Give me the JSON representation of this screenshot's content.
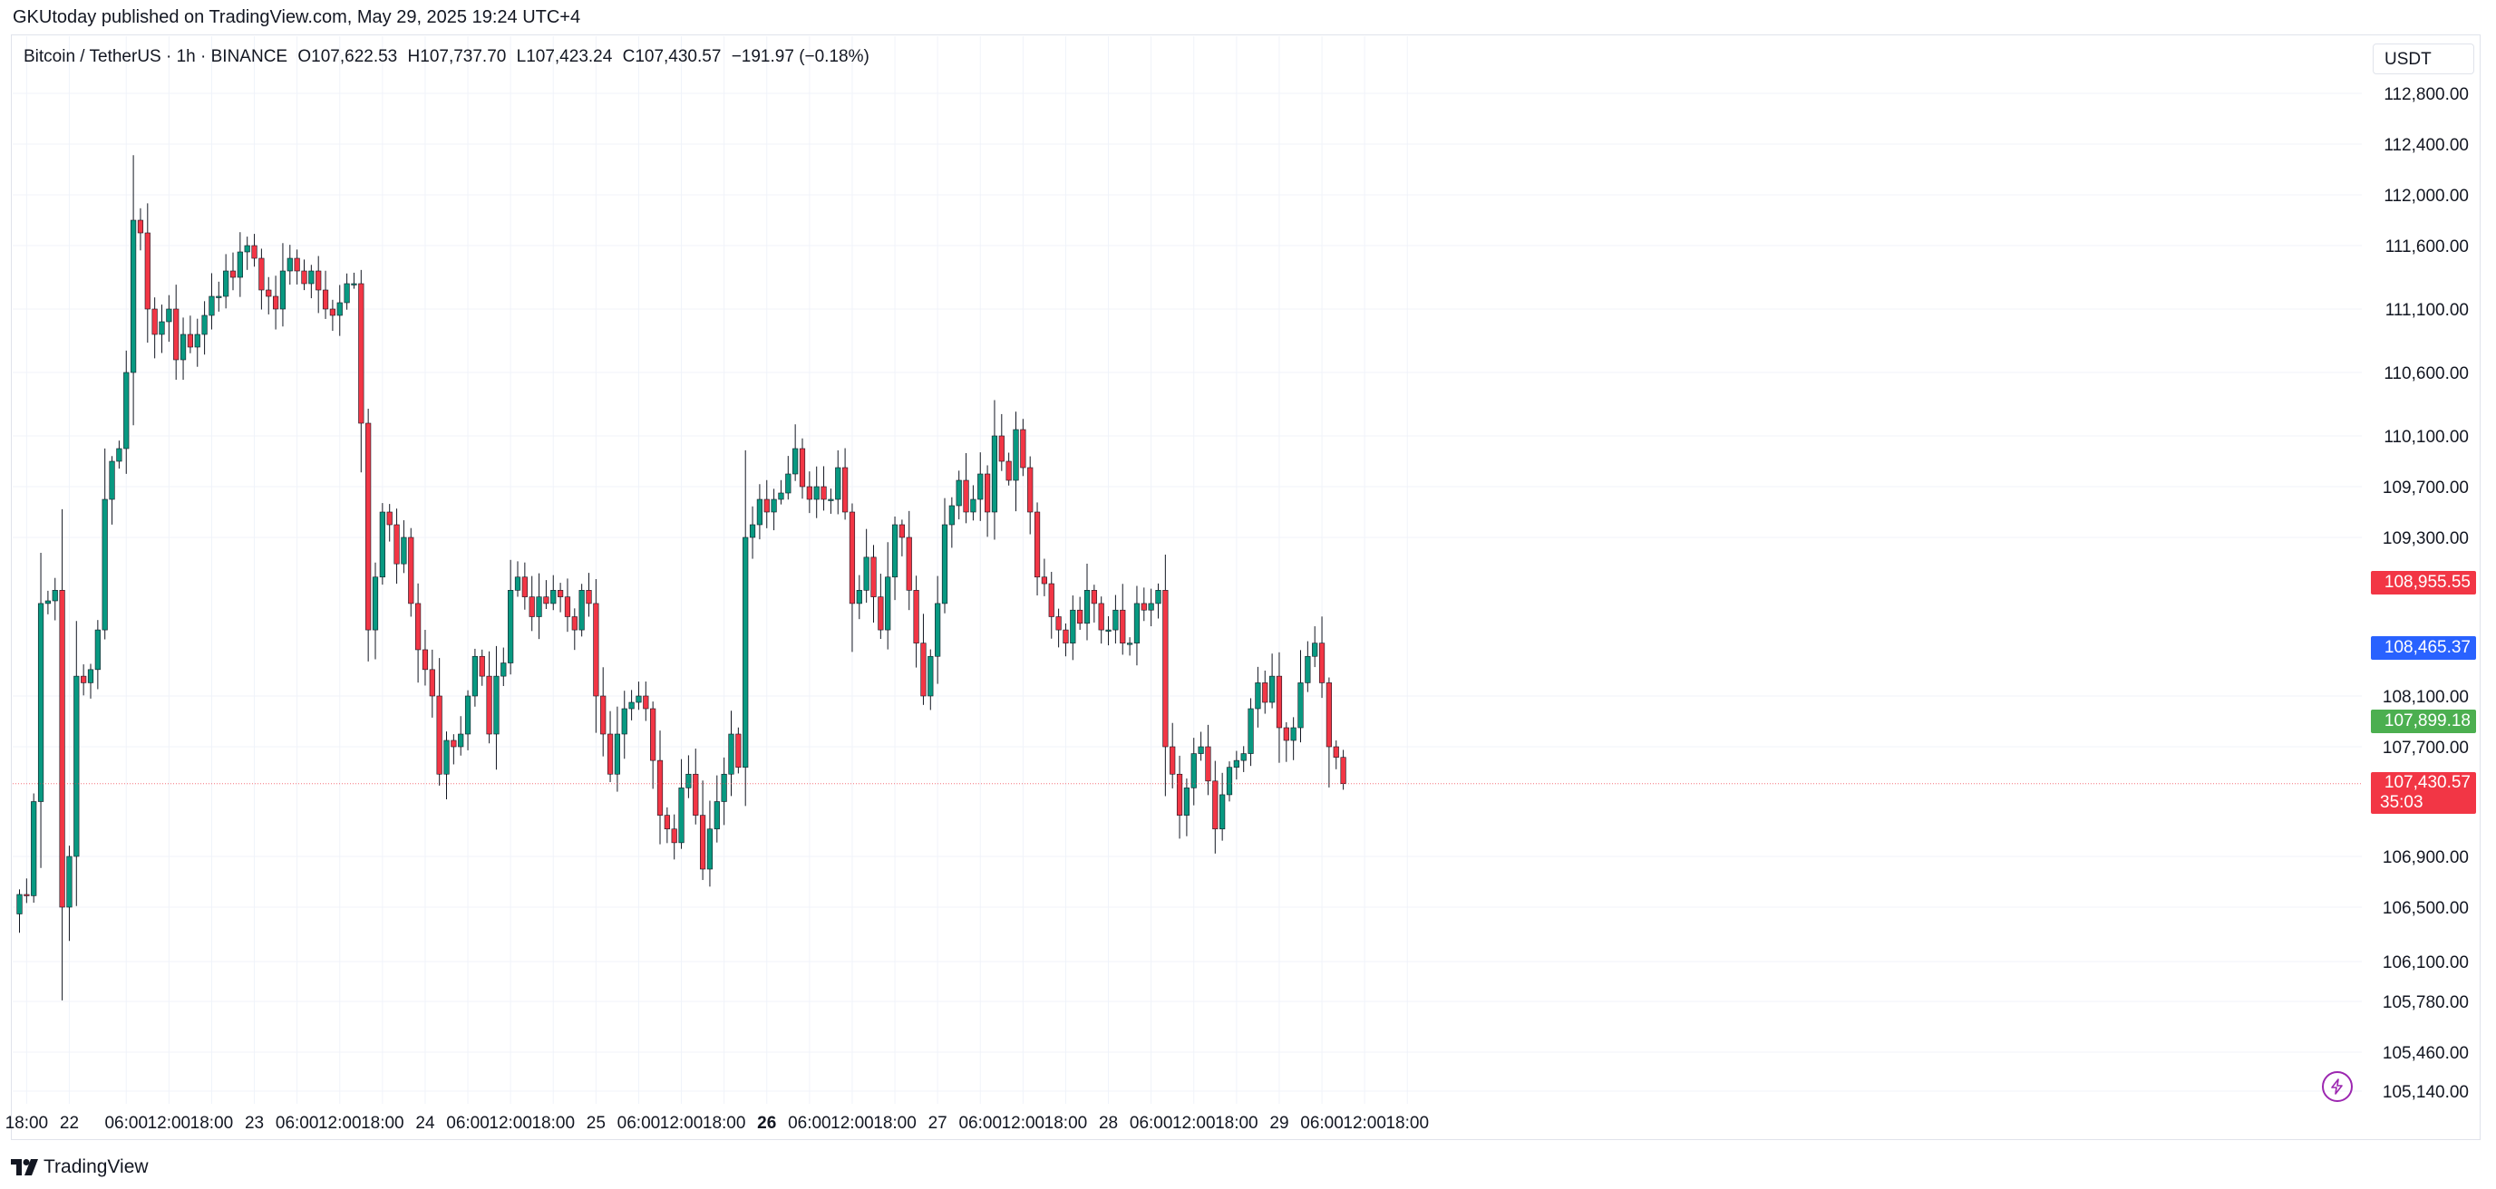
{
  "header": {
    "publisher_line": "GKUtoday published on TradingView.com, May 29, 2025 19:24 UTC+4"
  },
  "legend": {
    "symbol": "Bitcoin / TetherUS · 1h · BINANCE",
    "open": "O107,622.53",
    "high": "H107,737.70",
    "low": "L107,423.24",
    "close": "C107,430.57",
    "change": "−191.97 (−0.18%)"
  },
  "currency": "USDT",
  "footer": {
    "brand": "TradingView"
  },
  "colors": {
    "up": "#089981",
    "down": "#f23645",
    "grid": "#f0f3fa",
    "axis_text": "#131722",
    "blue": "#2962ff",
    "green_tag": "#4caf50",
    "purple": "#9c27b0"
  },
  "price_tags": [
    {
      "label": "108,955.55",
      "color": "#f23645"
    },
    {
      "label": "108,465.37",
      "color": "#2962ff"
    },
    {
      "label": "107,899.18",
      "color": "#4caf50"
    }
  ],
  "current_price": {
    "label": "107,430.57",
    "countdown": "35:03",
    "value": 107430.57
  },
  "chart_data": {
    "type": "candlestick",
    "symbol": "BTCUSDT",
    "interval": "1h",
    "exchange": "BINANCE",
    "y_axis": {
      "ticks": [
        112800,
        112400,
        112000,
        111600,
        111100,
        110600,
        110100,
        109700,
        109300,
        108100,
        107700,
        106900,
        106500,
        106100,
        105780,
        105460,
        105140
      ],
      "tick_labels": [
        "112,800.00",
        "112,400.00",
        "112,000.00",
        "111,600.00",
        "111,100.00",
        "110,600.00",
        "110,100.00",
        "109,700.00",
        "109,300.00",
        "108,100.00",
        "107,700.00",
        "106,900.00",
        "106,500.00",
        "106,100.00",
        "105,780.00",
        "105,460.00",
        "105,140.00"
      ]
    },
    "x_axis": {
      "labels": [
        {
          "text": "18:00",
          "bar": 1,
          "bold": false
        },
        {
          "text": "22",
          "bar": 7,
          "bold": false
        },
        {
          "text": "06:00",
          "bar": 15,
          "bold": false
        },
        {
          "text": "12:00",
          "bar": 21,
          "bold": false
        },
        {
          "text": "18:00",
          "bar": 27,
          "bold": false
        },
        {
          "text": "23",
          "bar": 33,
          "bold": false
        },
        {
          "text": "06:00",
          "bar": 39,
          "bold": false
        },
        {
          "text": "12:00",
          "bar": 45,
          "bold": false
        },
        {
          "text": "18:00",
          "bar": 51,
          "bold": false
        },
        {
          "text": "24",
          "bar": 57,
          "bold": false
        },
        {
          "text": "06:00",
          "bar": 63,
          "bold": false
        },
        {
          "text": "12:00",
          "bar": 69,
          "bold": false
        },
        {
          "text": "18:00",
          "bar": 75,
          "bold": false
        },
        {
          "text": "25",
          "bar": 81,
          "bold": false
        },
        {
          "text": "06:00",
          "bar": 87,
          "bold": false
        },
        {
          "text": "12:00",
          "bar": 93,
          "bold": false
        },
        {
          "text": "18:00",
          "bar": 99,
          "bold": false
        },
        {
          "text": "26",
          "bar": 105,
          "bold": true
        },
        {
          "text": "06:00",
          "bar": 111,
          "bold": false
        },
        {
          "text": "12:00",
          "bar": 117,
          "bold": false
        },
        {
          "text": "18:00",
          "bar": 123,
          "bold": false
        },
        {
          "text": "27",
          "bar": 129,
          "bold": false
        },
        {
          "text": "06:00",
          "bar": 135,
          "bold": false
        },
        {
          "text": "12:00",
          "bar": 141,
          "bold": false
        },
        {
          "text": "18:00",
          "bar": 147,
          "bold": false
        },
        {
          "text": "28",
          "bar": 153,
          "bold": false
        },
        {
          "text": "06:00",
          "bar": 159,
          "bold": false
        },
        {
          "text": "12:00",
          "bar": 165,
          "bold": false
        },
        {
          "text": "18:00",
          "bar": 171,
          "bold": false
        },
        {
          "text": "29",
          "bar": 177,
          "bold": false
        },
        {
          "text": "06:00",
          "bar": 183,
          "bold": false
        },
        {
          "text": "12:00",
          "bar": 189,
          "bold": false
        },
        {
          "text": "18:00",
          "bar": 195,
          "bold": false
        }
      ]
    },
    "closes": [
      106600,
      106590,
      107300,
      108800,
      108820,
      108900,
      106500,
      106900,
      108250,
      108200,
      108300,
      108600,
      109600,
      109900,
      110000,
      110600,
      111800,
      111700,
      111100,
      110900,
      111000,
      111100,
      110700,
      110900,
      110800,
      110900,
      111050,
      111200,
      111200,
      111400,
      111350,
      111550,
      111600,
      111500,
      111250,
      111200,
      111100,
      111400,
      111500,
      111400,
      111300,
      111400,
      111250,
      111100,
      111050,
      111150,
      111300,
      111300,
      110200,
      108600,
      109000,
      109500,
      109400,
      109100,
      109300,
      108800,
      108450,
      108300,
      108100,
      107500,
      107750,
      107700,
      107800,
      108100,
      108400,
      108250,
      107800,
      108250,
      108350,
      108900,
      109000,
      108850,
      108700,
      108850,
      108800,
      108900,
      108850,
      108700,
      108600,
      108900,
      108800,
      108100,
      107800,
      107500,
      107800,
      108000,
      108050,
      108100,
      108000,
      107600,
      107200,
      107100,
      107000,
      107400,
      107500,
      107200,
      106800,
      107100,
      107300,
      107500,
      107800,
      107550,
      109300,
      109400,
      109600,
      109500,
      109600,
      109650,
      109800,
      110000,
      109700,
      109600,
      109700,
      109600,
      109600,
      109850,
      109500,
      108800,
      108900,
      109150,
      108850,
      108600,
      109000,
      109400,
      109300,
      108900,
      108500,
      108100,
      108400,
      108800,
      109400,
      109550,
      109750,
      109500,
      109600,
      109800,
      109500,
      110100,
      109900,
      109750,
      110150,
      109850,
      109500,
      109000,
      108950,
      108700,
      108600,
      108500,
      108750,
      108650,
      108900,
      108800,
      108600,
      108600,
      108750,
      108500,
      108500,
      108800,
      108750,
      108800,
      108900,
      107700,
      107500,
      107200,
      107400,
      107650,
      107700,
      107450,
      107100,
      107350,
      107550,
      107600,
      107650,
      108000,
      108200,
      108050,
      108250,
      107850,
      107750,
      107850,
      108200,
      108400,
      108500,
      108200,
      107700,
      107622.53,
      107430.57
    ]
  }
}
